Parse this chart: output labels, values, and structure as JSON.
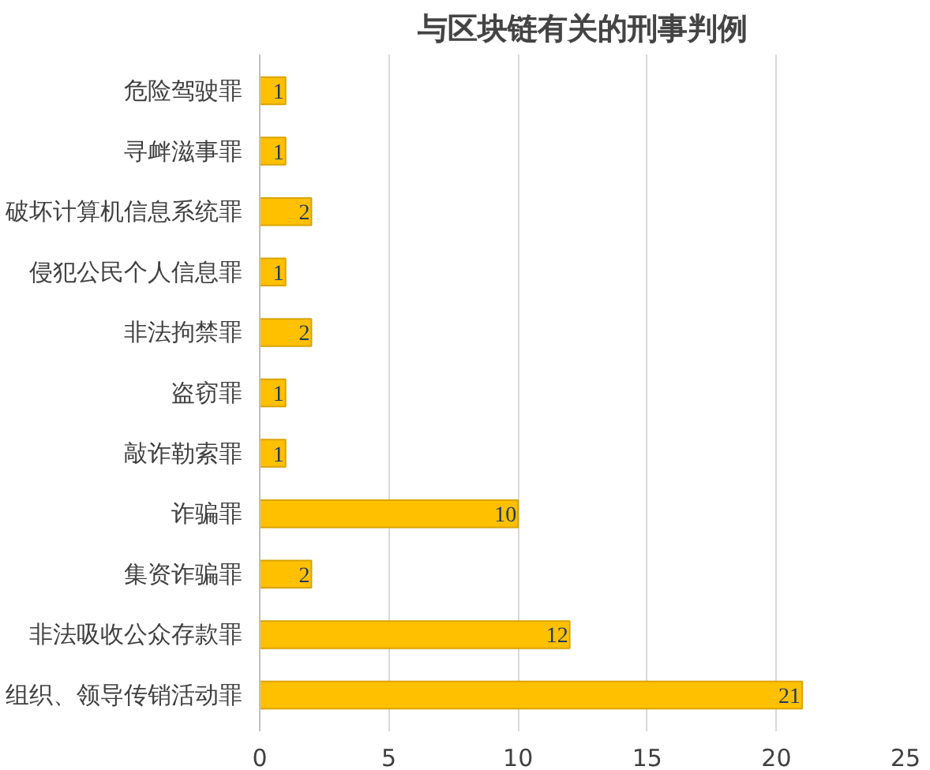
{
  "chart_data": {
    "type": "bar",
    "orientation": "horizontal",
    "title": "与区块链有关的刑事判例",
    "categories": [
      "危险驾驶罪",
      "寻衅滋事罪",
      "破坏计算机信息系统罪",
      "侵犯公民个人信息罪",
      "非法拘禁罪",
      "盗窃罪",
      "敲诈勒索罪",
      "诈骗罪",
      "集资诈骗罪",
      "非法吸收公众存款罪",
      "组织、领导传销活动罪"
    ],
    "values": [
      1,
      1,
      2,
      1,
      2,
      1,
      1,
      10,
      2,
      12,
      21
    ],
    "color": "#ffc000",
    "xlim": [
      0,
      25
    ],
    "xticks": [
      0,
      5,
      10,
      15,
      20,
      25
    ],
    "grid": "x",
    "data_labels": true
  }
}
